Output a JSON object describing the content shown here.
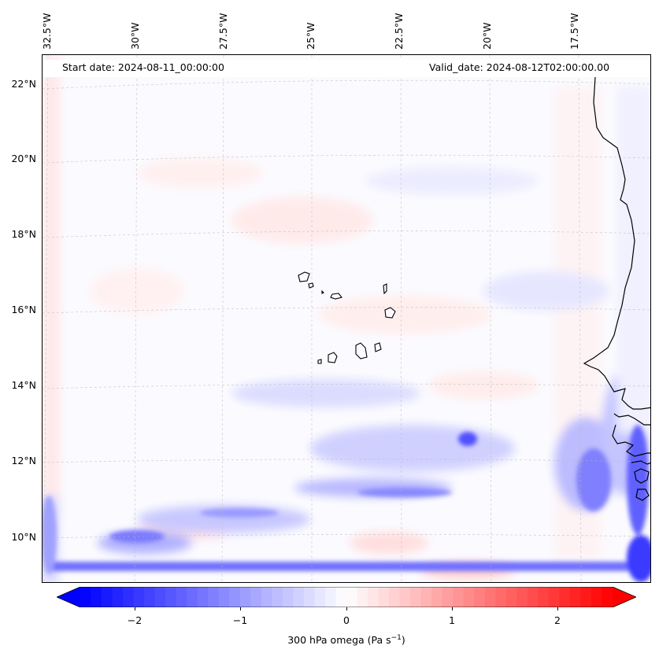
{
  "map": {
    "start_date_label": "Start date: 2024-08-11_00:00:00",
    "valid_date_label": "Valid_date: 2024-08-12T02:00:00.00",
    "lat_labels": [
      "22°N",
      "20°N",
      "18°N",
      "16°N",
      "14°N",
      "12°N",
      "10°N"
    ],
    "lon_labels": [
      "32.5°W",
      "30°W",
      "27.5°W",
      "25°W",
      "22.5°W",
      "20°W",
      "17.5°W"
    ],
    "colormap": {
      "negative": "#0000ff",
      "neutral": "#ffffff",
      "positive": "#ff0000"
    }
  },
  "colorbar": {
    "title_main": "300 hPa omega (Pa s",
    "title_exp": "−1",
    "title_tail": ")",
    "ticks": [
      "−2",
      "−1",
      "0",
      "1",
      "2"
    ],
    "range": [
      -2.75,
      2.75
    ]
  }
}
